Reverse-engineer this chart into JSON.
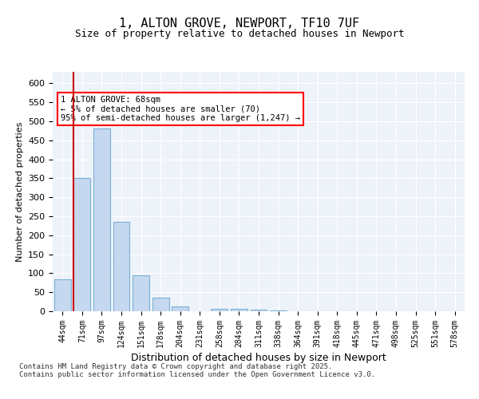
{
  "title": "1, ALTON GROVE, NEWPORT, TF10 7UF",
  "subtitle": "Size of property relative to detached houses in Newport",
  "xlabel": "Distribution of detached houses by size in Newport",
  "ylabel": "Number of detached properties",
  "bar_color": "#c5d8f0",
  "bar_edgecolor": "#7aafd4",
  "vline_color": "#cc0000",
  "vline_x": 1,
  "categories": [
    "44sqm",
    "71sqm",
    "97sqm",
    "124sqm",
    "151sqm",
    "178sqm",
    "204sqm",
    "231sqm",
    "258sqm",
    "284sqm",
    "311sqm",
    "338sqm",
    "364sqm",
    "391sqm",
    "418sqm",
    "445sqm",
    "471sqm",
    "498sqm",
    "525sqm",
    "551sqm",
    "578sqm"
  ],
  "values": [
    85,
    350,
    480,
    235,
    95,
    35,
    13,
    0,
    7,
    7,
    5,
    2,
    1,
    1,
    1,
    0,
    0,
    0,
    0,
    0,
    0
  ],
  "ylim": [
    0,
    630
  ],
  "yticks": [
    0,
    50,
    100,
    150,
    200,
    250,
    300,
    350,
    400,
    450,
    500,
    550,
    600
  ],
  "annotation_text": "1 ALTON GROVE: 68sqm\n← 5% of detached houses are smaller (70)\n95% of semi-detached houses are larger (1,247) →",
  "footer_text": "Contains HM Land Registry data © Crown copyright and database right 2025.\nContains public sector information licensed under the Open Government Licence v3.0.",
  "background_color": "#eef3f9",
  "grid_color": "#ffffff",
  "fig_bg_color": "#ffffff"
}
